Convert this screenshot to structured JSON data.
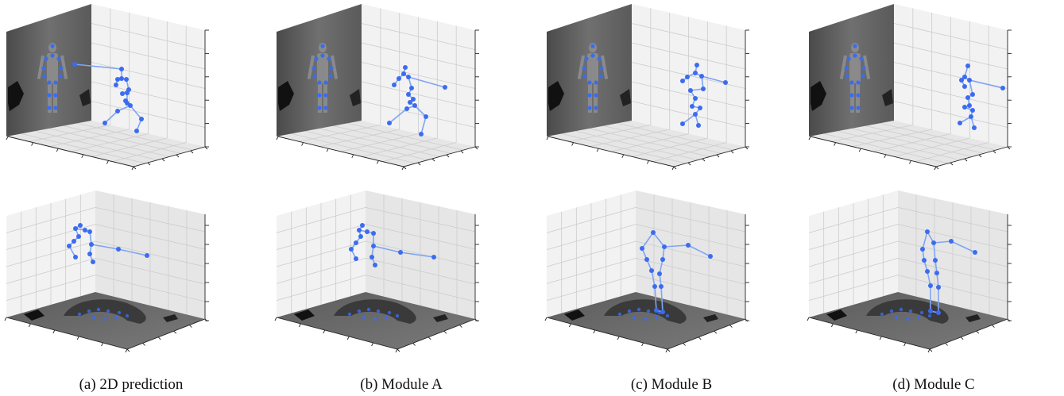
{
  "figure": {
    "panels": [
      {
        "caption": "(a) 2D prediction",
        "skeleton_top": "a",
        "skeleton_bottom": "a"
      },
      {
        "caption": "(b) Module A",
        "skeleton_top": "b",
        "skeleton_bottom": "b"
      },
      {
        "caption": "(c) Module B",
        "skeleton_top": "c",
        "skeleton_bottom": "c"
      },
      {
        "caption": "(d) Module C",
        "skeleton_top": "d",
        "skeleton_bottom": "d"
      }
    ]
  },
  "colors": {
    "joint": "#3b6cf0",
    "bone": "#7fa4f5",
    "pane_light": "#f2f2f2",
    "pane_dark": "#e6e6e6",
    "grid": "#cccccc",
    "depth_image": "#6a6a6a"
  }
}
